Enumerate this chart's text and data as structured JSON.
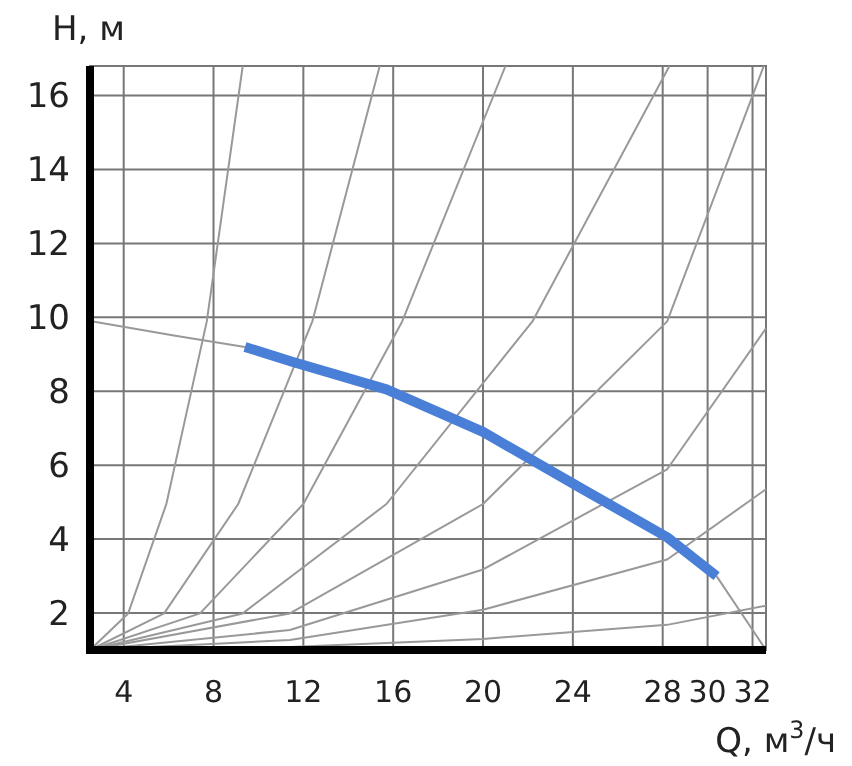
{
  "chart_data": {
    "type": "line",
    "xlabel": "Q, м$^{3}$/ч",
    "ylabel": "H, м",
    "xlim": [
      2.5,
      32.6
    ],
    "ylim": [
      1,
      16.8
    ],
    "xticks": [
      4,
      8,
      12,
      16,
      20,
      24,
      28,
      30,
      32
    ],
    "yticks": [
      2,
      4,
      6,
      8,
      10,
      12,
      14,
      16
    ],
    "grid": true,
    "marker": "none",
    "line_style": "solid",
    "series": [
      {
        "color": "#4a7fd8",
        "x": [
          9.4,
          11.5,
          15.7,
          20,
          24.3,
          28.2,
          30.4
        ],
        "values": [
          9.2,
          8.8,
          8.05,
          6.9,
          5.4,
          4.05,
          3.0
        ]
      },
      {
        "color": "#999999",
        "x": [
          2.5,
          6.3,
          9.4
        ],
        "values": [
          9.9,
          9.5,
          9.2
        ]
      },
      {
        "color": "#999999",
        "x": [
          30.4,
          32.6
        ],
        "values": [
          3.0,
          1.0
        ]
      },
      {
        "color": "#999999",
        "x": [
          2.5,
          4.2,
          5.9,
          7.7,
          9.3
        ],
        "values": [
          1,
          1.99,
          4.95,
          9.89,
          16.8
        ]
      },
      {
        "color": "#999999",
        "x": [
          2.5,
          5.8,
          9.1,
          12.4,
          15.4
        ],
        "values": [
          1,
          1.99,
          4.95,
          9.89,
          16.8
        ]
      },
      {
        "color": "#999999",
        "x": [
          2.5,
          7.4,
          12,
          16.4,
          21.0
        ],
        "values": [
          1,
          1.99,
          4.95,
          9.89,
          16.8
        ]
      },
      {
        "color": "#999999",
        "x": [
          2.5,
          9.3,
          15.7,
          22.2,
          28.3
        ],
        "values": [
          1,
          1.99,
          4.95,
          9.89,
          16.8
        ]
      },
      {
        "color": "#999999",
        "x": [
          2.5,
          11.4,
          20,
          28.2,
          32.5
        ],
        "values": [
          1,
          1.99,
          4.95,
          9.89,
          16.8
        ]
      },
      {
        "color": "#999999",
        "x": [
          2.5,
          11.4,
          20,
          28.2,
          32.6
        ],
        "values": [
          1,
          1.54,
          3.18,
          5.89,
          9.7
        ]
      },
      {
        "color": "#999999",
        "x": [
          2.5,
          11.4,
          20,
          28.2,
          32.6
        ],
        "values": [
          1,
          1.27,
          2.09,
          3.45,
          5.35
        ]
      },
      {
        "color": "#999999",
        "x": [
          2.5,
          11.4,
          20,
          28.2,
          32.6
        ],
        "values": [
          1,
          1.08,
          1.3,
          1.68,
          2.2
        ]
      }
    ]
  }
}
